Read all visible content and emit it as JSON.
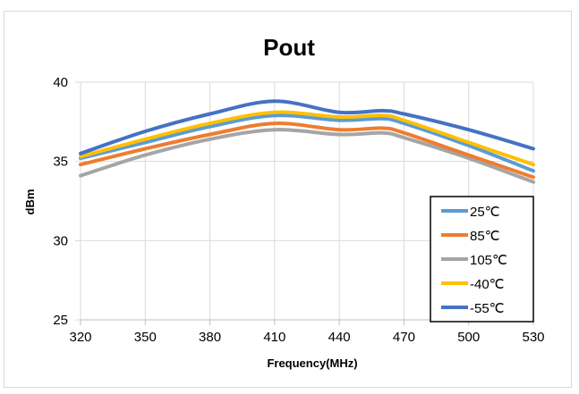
{
  "chart_data": {
    "type": "line",
    "title": "Pout",
    "xlabel": "Frequency(MHz)",
    "ylabel": "dBm",
    "xlim": [
      320,
      530
    ],
    "ylim": [
      25,
      40
    ],
    "x_ticks": [
      "320",
      "350",
      "380",
      "410",
      "440",
      "470",
      "500",
      "530"
    ],
    "y_ticks": [
      "25",
      "30",
      "35",
      "40"
    ],
    "grid": "vertical-and-horizontal",
    "legend_position": "right",
    "x": [
      320,
      350,
      380,
      410,
      440,
      460,
      470,
      500,
      530
    ],
    "series": [
      {
        "name": "25℃",
        "color": "#5b9bd5",
        "values": [
          35.2,
          36.2,
          37.2,
          37.9,
          37.6,
          37.7,
          37.4,
          36.0,
          34.4
        ]
      },
      {
        "name": "85℃",
        "color": "#ed7d31",
        "values": [
          34.8,
          35.8,
          36.7,
          37.4,
          37.0,
          37.1,
          36.8,
          35.4,
          34.0
        ]
      },
      {
        "name": "105℃",
        "color": "#a5a5a5",
        "values": [
          34.1,
          35.4,
          36.4,
          37.0,
          36.7,
          36.8,
          36.5,
          35.2,
          33.7
        ]
      },
      {
        "name": "-40℃",
        "color": "#ffc000",
        "values": [
          35.3,
          36.4,
          37.4,
          38.1,
          37.8,
          37.9,
          37.6,
          36.2,
          34.8
        ]
      },
      {
        "name": "-55℃",
        "color": "#4472c4",
        "values": [
          35.5,
          36.9,
          38.0,
          38.8,
          38.1,
          38.2,
          38.0,
          37.0,
          35.8
        ]
      }
    ]
  }
}
